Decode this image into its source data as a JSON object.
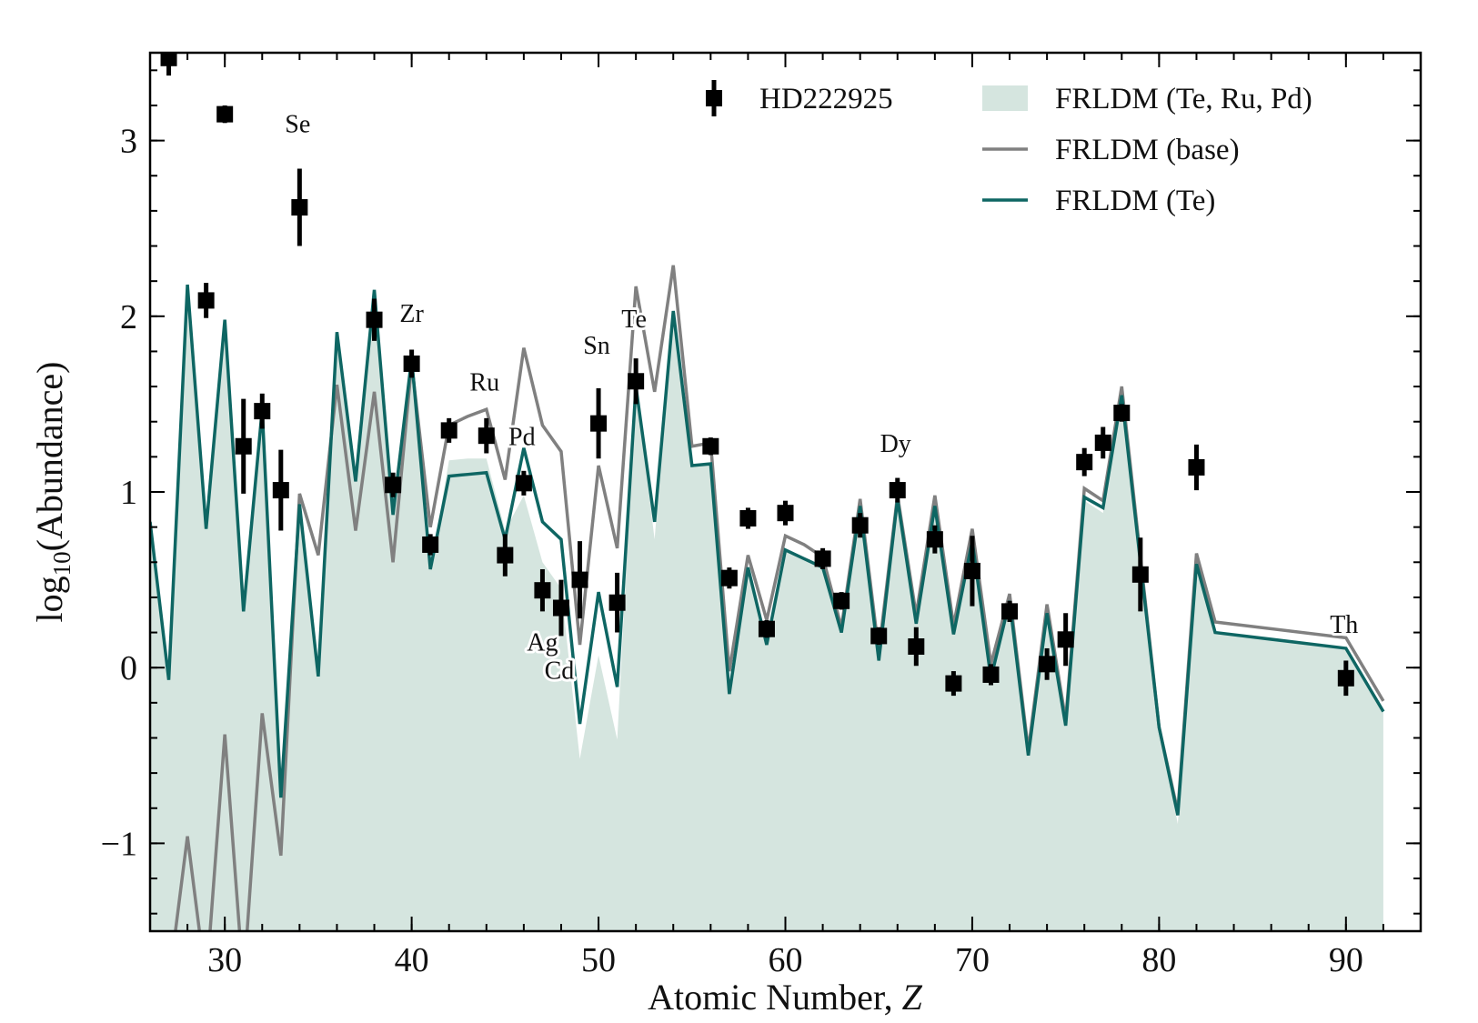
{
  "chart_data": {
    "type": "line",
    "x_label": "Atomic Number, ",
    "x_label_symbol": "Z",
    "y_label": {
      "prefix": "log",
      "subscript": "10",
      "suffix": "(Abundance)"
    },
    "xlim": [
      26,
      94
    ],
    "ylim": [
      -1.5,
      3.5
    ],
    "xticks": [
      30,
      40,
      50,
      60,
      70,
      80,
      90
    ],
    "yticks": [
      {
        "value": -1,
        "label": "−1"
      },
      0,
      1,
      2,
      3
    ],
    "legend": "upper right",
    "series": [
      {
        "name": "FRLDM (Te, Ru, Pd)",
        "type": "area",
        "color": "#d5e5df",
        "x": [
          26,
          27,
          28,
          29,
          30,
          31,
          32,
          33,
          34,
          35,
          36,
          37,
          38,
          39,
          40,
          41,
          42,
          43,
          44,
          45,
          46,
          47,
          48,
          49,
          50,
          51,
          52,
          53,
          54,
          55,
          56,
          57,
          58,
          59,
          60,
          61,
          62,
          63,
          64,
          65,
          66,
          67,
          68,
          69,
          70,
          71,
          72,
          73,
          74,
          75,
          76,
          77,
          78,
          79,
          80,
          81,
          82,
          83,
          90,
          92
        ],
        "values": [
          0.83,
          -0.07,
          2.18,
          0.79,
          1.98,
          0.32,
          1.47,
          -0.74,
          0.93,
          -0.05,
          1.91,
          1.06,
          2.15,
          0.87,
          1.76,
          0.56,
          1.18,
          1.19,
          1.19,
          0.78,
          0.98,
          0.6,
          0.45,
          -0.52,
          0.07,
          -0.41,
          1.6,
          0.73,
          2.03,
          1.15,
          1.16,
          -0.15,
          0.57,
          0.13,
          0.67,
          0.62,
          0.57,
          0.2,
          0.92,
          0.04,
          0.96,
          0.25,
          0.92,
          0.19,
          0.72,
          -0.06,
          0.38,
          -0.5,
          0.31,
          -0.33,
          0.95,
          0.88,
          1.55,
          0.6,
          -0.34,
          -0.89,
          0.59,
          0.2,
          0.11,
          -0.25
        ]
      },
      {
        "name": "FRLDM (base)",
        "type": "line",
        "color": "#808080",
        "x": [
          27,
          28,
          29,
          30,
          31,
          32,
          33,
          34,
          35,
          36,
          37,
          38,
          39,
          40,
          41,
          42,
          43,
          44,
          45,
          46,
          47,
          48,
          49,
          50,
          51,
          52,
          53,
          54,
          55,
          56,
          57,
          58,
          59,
          60,
          61,
          62,
          63,
          64,
          65,
          66,
          67,
          68,
          69,
          70,
          71,
          72,
          73,
          74,
          75,
          76,
          77,
          78,
          79,
          80,
          81,
          82,
          83,
          90,
          92
        ],
        "values": [
          -1.8,
          -0.96,
          -1.8,
          -0.38,
          -1.8,
          -0.26,
          -1.07,
          0.99,
          0.64,
          1.61,
          0.78,
          1.57,
          0.6,
          1.73,
          0.8,
          1.38,
          1.43,
          1.47,
          1.07,
          1.82,
          1.38,
          1.23,
          0.13,
          1.15,
          0.68,
          2.17,
          1.57,
          2.29,
          1.26,
          1.28,
          -0.02,
          0.64,
          0.27,
          0.75,
          0.7,
          0.63,
          0.23,
          0.96,
          0.09,
          0.98,
          0.3,
          0.98,
          0.24,
          0.79,
          0.02,
          0.42,
          -0.47,
          0.36,
          -0.3,
          1.02,
          0.95,
          1.6,
          0.63,
          -0.34,
          -0.82,
          0.65,
          0.26,
          0.17,
          -0.19
        ]
      },
      {
        "name": "FRLDM (Te)",
        "type": "line",
        "color": "#0e6663",
        "x": [
          26,
          27,
          28,
          29,
          30,
          31,
          32,
          33,
          34,
          35,
          36,
          37,
          38,
          39,
          40,
          41,
          42,
          43,
          44,
          45,
          46,
          47,
          48,
          49,
          50,
          51,
          52,
          53,
          54,
          55,
          56,
          57,
          58,
          59,
          60,
          61,
          62,
          63,
          64,
          65,
          66,
          67,
          68,
          69,
          70,
          71,
          72,
          73,
          74,
          75,
          76,
          77,
          78,
          79,
          80,
          81,
          82,
          83,
          90,
          92
        ],
        "values": [
          0.83,
          -0.07,
          2.18,
          0.79,
          1.98,
          0.32,
          1.47,
          -0.74,
          0.93,
          -0.05,
          1.91,
          1.06,
          2.15,
          0.87,
          1.76,
          0.56,
          1.09,
          1.1,
          1.11,
          0.73,
          1.25,
          0.83,
          0.73,
          -0.32,
          0.43,
          -0.11,
          1.6,
          0.83,
          2.03,
          1.15,
          1.16,
          -0.15,
          0.57,
          0.13,
          0.67,
          0.62,
          0.57,
          0.2,
          0.92,
          0.04,
          0.96,
          0.25,
          0.92,
          0.19,
          0.72,
          -0.06,
          0.38,
          -0.5,
          0.31,
          -0.33,
          0.97,
          0.91,
          1.55,
          0.6,
          -0.34,
          -0.84,
          0.59,
          0.2,
          0.11,
          -0.25
        ]
      },
      {
        "name": "HD222925",
        "type": "errorbar",
        "color": "#000000",
        "x": [
          27,
          29,
          30,
          31,
          32,
          33,
          34,
          38,
          39,
          40,
          41,
          42,
          44,
          45,
          46,
          47,
          48,
          49,
          50,
          51,
          52,
          56,
          57,
          58,
          59,
          60,
          62,
          63,
          64,
          65,
          66,
          67,
          68,
          69,
          70,
          71,
          72,
          74,
          75,
          76,
          77,
          78,
          79,
          82,
          90
        ],
        "values": [
          3.47,
          2.09,
          3.15,
          1.26,
          1.46,
          1.01,
          2.62,
          1.98,
          1.04,
          1.73,
          0.7,
          1.35,
          1.32,
          0.64,
          1.05,
          0.44,
          0.34,
          0.5,
          1.39,
          0.37,
          1.63,
          1.26,
          0.51,
          0.85,
          0.22,
          0.88,
          0.62,
          0.38,
          0.81,
          0.18,
          1.01,
          0.12,
          0.73,
          -0.09,
          0.55,
          -0.04,
          0.32,
          0.02,
          0.16,
          1.17,
          1.28,
          1.45,
          0.53,
          1.14,
          -0.06
        ],
        "errors": [
          0.1,
          0.1,
          0.05,
          0.27,
          0.1,
          0.23,
          0.22,
          0.12,
          0.07,
          0.08,
          0.06,
          0.07,
          0.1,
          0.12,
          0.07,
          0.12,
          0.16,
          0.22,
          0.2,
          0.17,
          0.13,
          0.05,
          0.06,
          0.06,
          0.05,
          0.07,
          0.06,
          0.05,
          0.07,
          0.05,
          0.07,
          0.11,
          0.08,
          0.07,
          0.2,
          0.06,
          0.06,
          0.09,
          0.15,
          0.08,
          0.09,
          0.05,
          0.21,
          0.13,
          0.1
        ]
      }
    ],
    "annotations": [
      {
        "text": "Se",
        "x": 33.9,
        "y": 3.08
      },
      {
        "text": "Zr",
        "x": 40,
        "y": 2.0
      },
      {
        "text": "Ru",
        "x": 43.9,
        "y": 1.61
      },
      {
        "text": "Pd",
        "x": 45.9,
        "y": 1.3
      },
      {
        "text": "Sn",
        "x": 49.9,
        "y": 1.82
      },
      {
        "text": "Te",
        "x": 51.9,
        "y": 1.97
      },
      {
        "text": "Ag",
        "x": 47.0,
        "y": 0.13
      },
      {
        "text": "Cd",
        "x": 47.9,
        "y": -0.03
      },
      {
        "text": "Dy",
        "x": 65.9,
        "y": 1.26
      },
      {
        "text": "Th",
        "x": 89.9,
        "y": 0.23
      }
    ]
  }
}
